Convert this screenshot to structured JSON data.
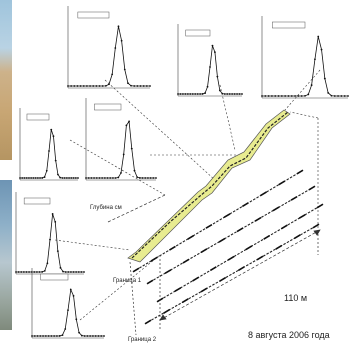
{
  "colors": {
    "trace": "#111111",
    "belt_fill": "#e8ec90",
    "belt_edge": "#555555",
    "guide": "#333333",
    "photo_sand": "#c8a674",
    "photo_sea": "#7fa5c2"
  },
  "labels": {
    "depth": "Глубина см",
    "pit1": "Граница 1",
    "pit2": "Граница 2",
    "width": "110 м",
    "date": "8 августа 2006 года"
  }
}
